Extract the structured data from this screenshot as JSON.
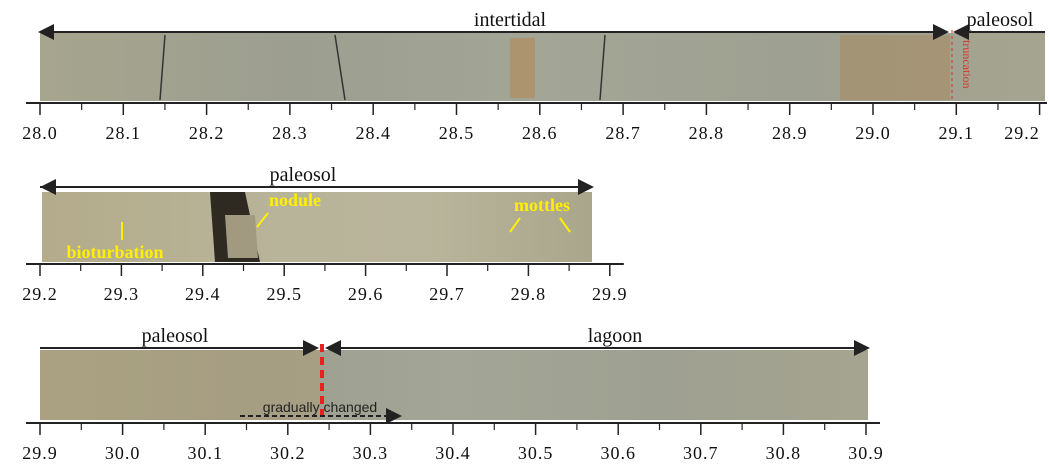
{
  "rows": [
    {
      "ticks": [
        "28.0",
        "28.1",
        "28.2",
        "28.3",
        "28.4",
        "28.5",
        "28.6",
        "28.7",
        "28.8",
        "28.9",
        "29.0",
        "29.1",
        "29.2"
      ],
      "intervals": [
        "intertidal",
        "paleosol"
      ],
      "annotations": [
        "truncation"
      ]
    },
    {
      "ticks": [
        "29.2",
        "29.3",
        "29.4",
        "29.5",
        "29.6",
        "29.7",
        "29.8",
        "29.9"
      ],
      "intervals": [
        "paleosol"
      ],
      "annotations": [
        "nodule",
        "mottles",
        "bioturbation"
      ]
    },
    {
      "ticks": [
        "29.9",
        "30.0",
        "30.1",
        "30.2",
        "30.3",
        "30.4",
        "30.5",
        "30.6",
        "30.7",
        "30.8",
        "30.9"
      ],
      "intervals": [
        "paleosol",
        "lagoon"
      ],
      "annotations": [
        "gradually changed"
      ]
    }
  ]
}
